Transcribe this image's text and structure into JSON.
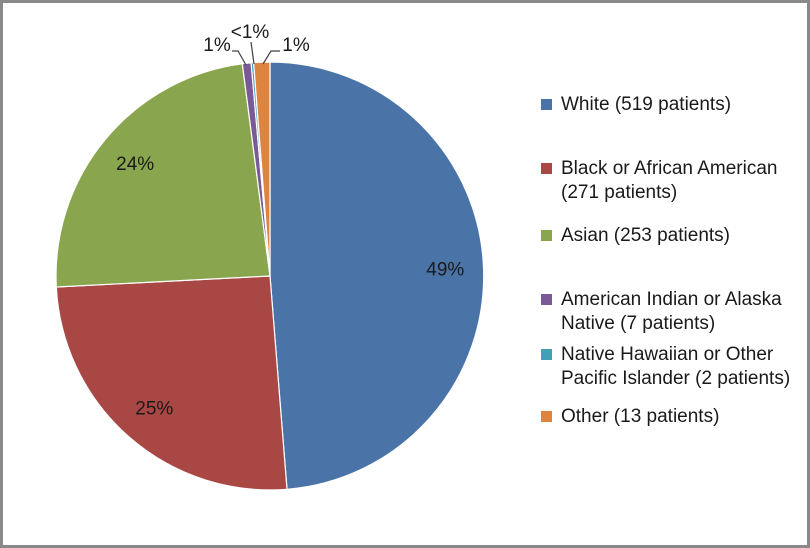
{
  "chart_data": {
    "type": "pie",
    "legend_position": "right",
    "start_angle_deg": 0,
    "direction": "clockwise",
    "series": [
      {
        "label": "White",
        "patients": 519,
        "pct_label": "49%",
        "color": "#4a74a8",
        "label_placement": "inside"
      },
      {
        "label": "Black or African American",
        "patients": 271,
        "pct_label": "25%",
        "color": "#a94745",
        "label_placement": "inside"
      },
      {
        "label": "Asian",
        "patients": 253,
        "pct_label": "24%",
        "color": "#89a54e",
        "label_placement": "inside"
      },
      {
        "label": "American Indian or Alaska Native",
        "patients": 7,
        "pct_label": "1%",
        "color": "#7a5a96",
        "label_placement": "outside"
      },
      {
        "label": "Native Hawaiian or Other Pacific Islander",
        "patients": 2,
        "pct_label": "<1%",
        "color": "#41a0b8",
        "label_placement": "outside"
      },
      {
        "label": "Other",
        "patients": 13,
        "pct_label": "1%",
        "color": "#dd8440",
        "label_placement": "outside"
      }
    ]
  },
  "legend": {
    "items": [
      {
        "lines": [
          "White (519 patients)"
        ],
        "color": "#4a74a8"
      },
      {
        "lines": [
          "Black or African American",
          "(271 patients)"
        ],
        "color": "#a94745"
      },
      {
        "lines": [
          "Asian (253 patients)"
        ],
        "color": "#89a54e"
      },
      {
        "lines": [
          "American Indian or Alaska",
          "Native (7 patients)"
        ],
        "color": "#7a5a96"
      },
      {
        "lines": [
          "Native Hawaiian or Other",
          "Pacific Islander (2 patients)"
        ],
        "color": "#41a0b8"
      },
      {
        "lines": [
          "Other (13 patients)"
        ],
        "color": "#dd8440"
      }
    ]
  }
}
